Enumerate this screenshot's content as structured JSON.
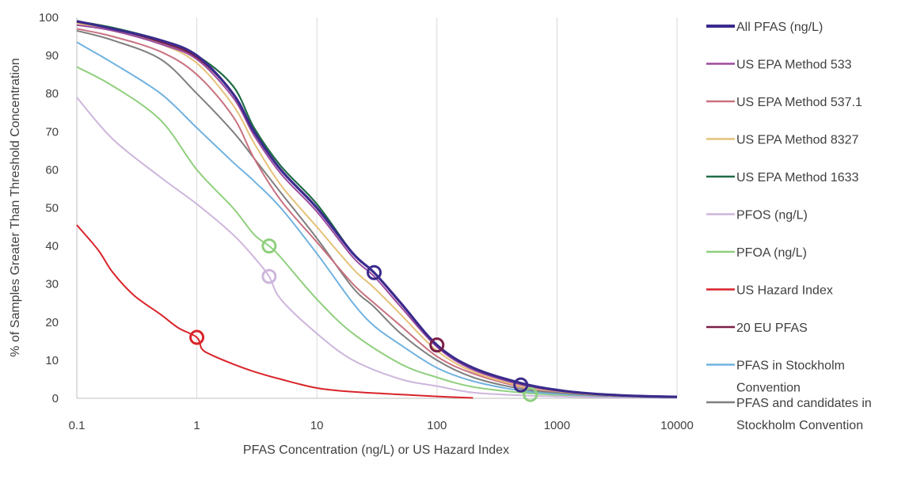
{
  "chart_data": {
    "type": "line",
    "title": "",
    "xlabel": "PFAS Concentration (ng/L) or US Hazard Index",
    "ylabel": "% of Samples Greater Than Threshold Concentration",
    "x_scale": "log",
    "xlim": [
      0.1,
      10000
    ],
    "ylim": [
      0,
      100
    ],
    "x_ticks": [
      "0.1",
      "1",
      "10",
      "100",
      "1000",
      "10000"
    ],
    "y_ticks": [
      "0",
      "10",
      "20",
      "30",
      "40",
      "50",
      "60",
      "70",
      "80",
      "90",
      "100"
    ],
    "grid": "vertical",
    "legend_position": "right",
    "series": [
      {
        "name": "All PFAS (ng/L)",
        "color": "#3a2b8c",
        "width": 3.2,
        "points": [
          [
            0.1,
            99
          ],
          [
            0.2,
            97
          ],
          [
            0.5,
            94
          ],
          [
            1,
            90
          ],
          [
            2,
            80
          ],
          [
            3,
            70
          ],
          [
            5,
            60
          ],
          [
            10,
            50
          ],
          [
            20,
            38
          ],
          [
            30,
            33
          ],
          [
            50,
            25
          ],
          [
            100,
            14
          ],
          [
            200,
            8
          ],
          [
            500,
            4
          ],
          [
            1000,
            2.2
          ],
          [
            2000,
            1.2
          ],
          [
            5000,
            0.6
          ],
          [
            10000,
            0.4
          ]
        ],
        "markers": [
          [
            30,
            33
          ],
          [
            500,
            3.5
          ]
        ]
      },
      {
        "name": "US EPA Method 533",
        "color": "#9b4a9f",
        "width": 2,
        "points": [
          [
            0.1,
            98
          ],
          [
            0.2,
            96.5
          ],
          [
            0.5,
            93
          ],
          [
            1,
            89
          ],
          [
            2,
            79
          ],
          [
            3,
            69
          ],
          [
            5,
            59
          ],
          [
            10,
            49
          ],
          [
            20,
            37
          ],
          [
            30,
            32
          ],
          [
            50,
            24
          ],
          [
            100,
            13.5
          ],
          [
            200,
            7.5
          ],
          [
            500,
            3.6
          ],
          [
            1000,
            2
          ],
          [
            2000,
            1.1
          ],
          [
            5000,
            0.5
          ],
          [
            10000,
            0.4
          ]
        ]
      },
      {
        "name": "US EPA Method 537.1",
        "color": "#c97180",
        "width": 2,
        "points": [
          [
            0.1,
            97
          ],
          [
            0.2,
            95
          ],
          [
            0.5,
            91
          ],
          [
            1,
            85
          ],
          [
            2,
            74
          ],
          [
            3,
            63
          ],
          [
            5,
            52
          ],
          [
            10,
            41
          ],
          [
            20,
            30
          ],
          [
            30,
            25
          ],
          [
            50,
            19
          ],
          [
            100,
            11
          ],
          [
            200,
            6.5
          ],
          [
            500,
            3
          ],
          [
            1000,
            1.8
          ],
          [
            2000,
            1
          ],
          [
            5000,
            0.5
          ],
          [
            10000,
            0.3
          ]
        ]
      },
      {
        "name": "US EPA Method 8327",
        "color": "#e6c27a",
        "width": 2,
        "points": [
          [
            0.1,
            98.5
          ],
          [
            0.2,
            96.5
          ],
          [
            0.5,
            93
          ],
          [
            1,
            88
          ],
          [
            2,
            77
          ],
          [
            3,
            67
          ],
          [
            5,
            56
          ],
          [
            10,
            45
          ],
          [
            20,
            34
          ],
          [
            30,
            29
          ],
          [
            50,
            22
          ],
          [
            100,
            12.5
          ],
          [
            200,
            7
          ],
          [
            500,
            3.2
          ],
          [
            1000,
            1.9
          ],
          [
            2000,
            1
          ],
          [
            5000,
            0.5
          ],
          [
            10000,
            0.3
          ]
        ]
      },
      {
        "name": "US EPA Method 1633",
        "color": "#1e6b46",
        "width": 2.2,
        "points": [
          [
            0.1,
            99
          ],
          [
            0.2,
            97.3
          ],
          [
            0.5,
            94
          ],
          [
            1,
            90
          ],
          [
            2,
            82
          ],
          [
            3,
            71
          ],
          [
            5,
            61
          ],
          [
            10,
            51
          ],
          [
            20,
            38
          ],
          [
            30,
            33
          ],
          [
            50,
            25
          ],
          [
            100,
            14
          ],
          [
            200,
            8
          ],
          [
            500,
            4
          ],
          [
            1000,
            2.2
          ],
          [
            2000,
            1.2
          ],
          [
            5000,
            0.6
          ],
          [
            10000,
            0.4
          ]
        ]
      },
      {
        "name": "PFOS (ng/L)",
        "color": "#cdb6dc",
        "width": 2,
        "points": [
          [
            0.1,
            79
          ],
          [
            0.2,
            68
          ],
          [
            0.5,
            58
          ],
          [
            1,
            51
          ],
          [
            2,
            43
          ],
          [
            3,
            37
          ],
          [
            4,
            32
          ],
          [
            5,
            26
          ],
          [
            10,
            17
          ],
          [
            20,
            10
          ],
          [
            50,
            5
          ],
          [
            100,
            3.2
          ],
          [
            200,
            1.5
          ],
          [
            500,
            0.8
          ],
          [
            1000,
            0.5
          ],
          [
            2000,
            0.3
          ],
          [
            5000,
            0.2
          ],
          [
            10000,
            0.1
          ]
        ],
        "markers": [
          [
            4,
            32
          ]
        ]
      },
      {
        "name": "PFOA (ng/L)",
        "color": "#8fcf7d",
        "width": 2,
        "points": [
          [
            0.1,
            87
          ],
          [
            0.2,
            82
          ],
          [
            0.5,
            73
          ],
          [
            1,
            60
          ],
          [
            2,
            50
          ],
          [
            3,
            43
          ],
          [
            4,
            40
          ],
          [
            5,
            37
          ],
          [
            10,
            26
          ],
          [
            20,
            17
          ],
          [
            50,
            9
          ],
          [
            100,
            5.5
          ],
          [
            200,
            3
          ],
          [
            500,
            1.5
          ],
          [
            1000,
            0.9
          ],
          [
            2000,
            0.5
          ],
          [
            5000,
            0.3
          ],
          [
            10000,
            0.2
          ]
        ],
        "markers": [
          [
            4,
            40
          ],
          [
            600,
            1
          ]
        ]
      },
      {
        "name": "US Hazard Index",
        "color": "#d9242a",
        "width": 2,
        "points": [
          [
            0.1,
            45.5
          ],
          [
            0.15,
            39
          ],
          [
            0.2,
            33
          ],
          [
            0.3,
            27
          ],
          [
            0.5,
            22
          ],
          [
            0.7,
            18.5
          ],
          [
            1,
            16
          ],
          [
            1.1,
            13
          ],
          [
            1.3,
            11.5
          ],
          [
            2,
            9
          ],
          [
            3,
            7
          ],
          [
            5,
            5
          ],
          [
            10,
            2.7
          ],
          [
            20,
            1.7
          ],
          [
            50,
            1
          ],
          [
            100,
            0.5
          ],
          [
            200,
            0.1
          ]
        ],
        "markers": [
          [
            1,
            16
          ]
        ]
      },
      {
        "name": "20 EU PFAS",
        "color": "#7a1f45",
        "width": 2,
        "points": [
          [
            0.1,
            98.8
          ],
          [
            0.2,
            97
          ],
          [
            0.5,
            93.5
          ],
          [
            1,
            89.5
          ],
          [
            2,
            80
          ],
          [
            3,
            70
          ],
          [
            5,
            60
          ],
          [
            10,
            50
          ],
          [
            20,
            38
          ],
          [
            30,
            33
          ],
          [
            50,
            25
          ],
          [
            100,
            14
          ],
          [
            200,
            8
          ],
          [
            500,
            4
          ],
          [
            1000,
            2.1
          ],
          [
            2000,
            1.1
          ],
          [
            5000,
            0.5
          ],
          [
            10000,
            0.4
          ]
        ],
        "markers": [
          [
            100,
            14
          ]
        ]
      },
      {
        "name": "PFAS in Stockholm Convention",
        "color": "#71b2e0",
        "width": 2,
        "points": [
          [
            0.1,
            93.5
          ],
          [
            0.2,
            88
          ],
          [
            0.5,
            80
          ],
          [
            1,
            71
          ],
          [
            2,
            62
          ],
          [
            3,
            57
          ],
          [
            5,
            50
          ],
          [
            10,
            38
          ],
          [
            20,
            25
          ],
          [
            30,
            19
          ],
          [
            50,
            14
          ],
          [
            100,
            8
          ],
          [
            200,
            4.5
          ],
          [
            500,
            2
          ],
          [
            1000,
            1.2
          ],
          [
            2000,
            0.7
          ],
          [
            5000,
            0.4
          ],
          [
            10000,
            0.2
          ]
        ]
      },
      {
        "name": "PFAS and candidates in Stockholm Convention",
        "color": "#7f7f7f",
        "width": 2,
        "points": [
          [
            0.1,
            96.5
          ],
          [
            0.2,
            94
          ],
          [
            0.5,
            89
          ],
          [
            1,
            80
          ],
          [
            2,
            70
          ],
          [
            3,
            63
          ],
          [
            5,
            54
          ],
          [
            10,
            42
          ],
          [
            20,
            29
          ],
          [
            30,
            24
          ],
          [
            50,
            17
          ],
          [
            100,
            10
          ],
          [
            200,
            5.5
          ],
          [
            500,
            2.5
          ],
          [
            1000,
            1.5
          ],
          [
            2000,
            0.8
          ],
          [
            5000,
            0.4
          ],
          [
            10000,
            0.2
          ]
        ]
      }
    ]
  },
  "legend": {
    "items": [
      {
        "lines": [
          "All PFAS (ng/L)"
        ]
      },
      {
        "lines": [
          "US EPA Method 533"
        ]
      },
      {
        "lines": [
          "US EPA Method 537.1"
        ]
      },
      {
        "lines": [
          "US EPA Method 8327"
        ]
      },
      {
        "lines": [
          "US EPA Method 1633"
        ]
      },
      {
        "lines": [
          "PFOS (ng/L)"
        ]
      },
      {
        "lines": [
          "PFOA (ng/L)"
        ]
      },
      {
        "lines": [
          "US Hazard Index"
        ]
      },
      {
        "lines": [
          "20 EU PFAS"
        ]
      },
      {
        "lines": [
          "PFAS in Stockholm",
          "Convention"
        ]
      },
      {
        "lines": [
          "PFAS and candidates in",
          "Stockholm Convention"
        ]
      }
    ]
  }
}
